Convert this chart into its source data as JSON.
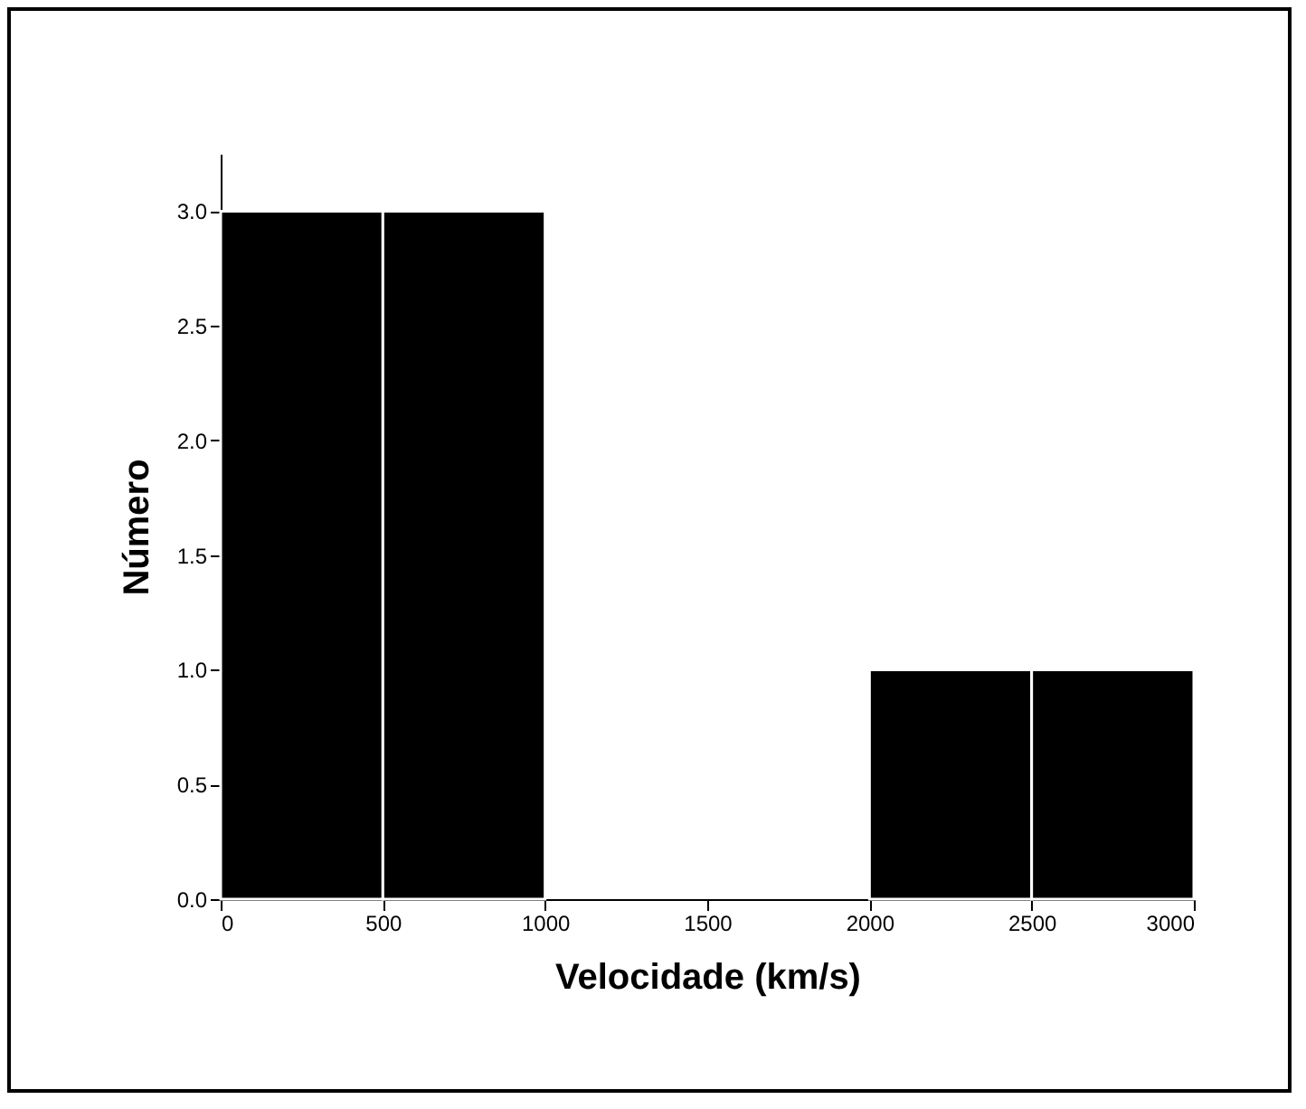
{
  "chart_data": {
    "type": "histogram",
    "xlabel": "Velocidade (km/s)",
    "ylabel": "Número",
    "bins": [
      0,
      500,
      1000,
      1500,
      2000,
      2500,
      3000
    ],
    "values": [
      3,
      3,
      0,
      0,
      1,
      1
    ],
    "color": "#000000",
    "xlim": [
      0,
      3000
    ],
    "xticks": [
      0,
      500,
      1000,
      1500,
      2000,
      2500,
      3000
    ],
    "ylim": [
      0,
      3.25
    ],
    "yticks": [
      {
        "value": 0,
        "label": "0.0"
      },
      {
        "value": 0.5,
        "label": "0.5"
      },
      {
        "value": 1,
        "label": "1.0"
      },
      {
        "value": 1.5,
        "label": "1.5"
      },
      {
        "value": 2,
        "label": "2.0"
      },
      {
        "value": 2.5,
        "label": "2.5"
      },
      {
        "value": 3,
        "label": "3.0"
      }
    ],
    "grid": false
  }
}
